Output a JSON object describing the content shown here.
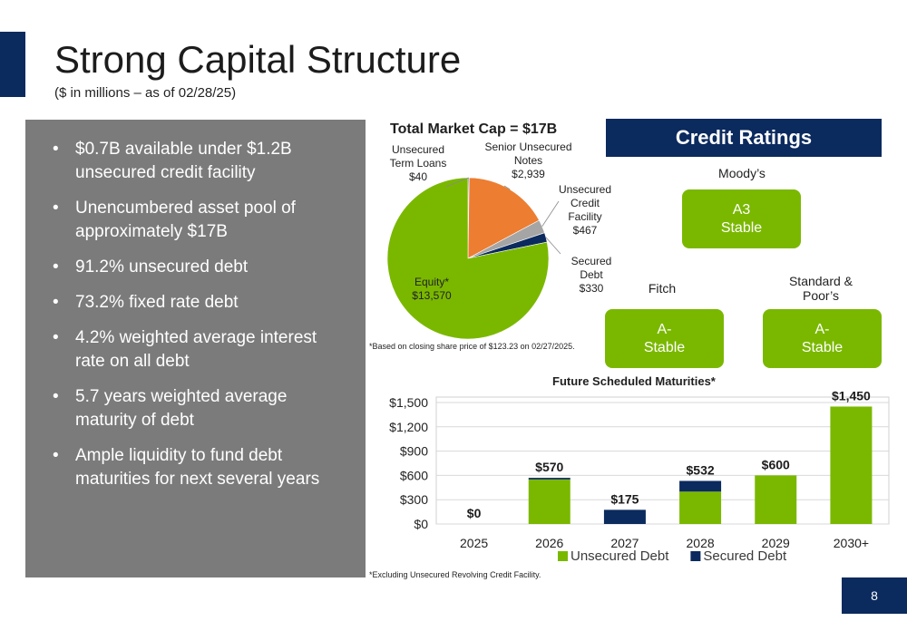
{
  "header": {
    "title": "Strong Capital Structure",
    "subtitle": "($ in millions – as of 02/28/25)"
  },
  "bullets": [
    "$0.7B available under $1.2B unsecured credit facility",
    "Unencumbered asset pool of approximately $17B",
    "91.2% unsecured debt",
    "73.2% fixed rate debt",
    "4.2% weighted average interest rate on all debt",
    "5.7 years weighted average maturity of debt",
    "Ample liquidity to fund debt maturities for next several years"
  ],
  "pie": {
    "title": "Total Market Cap = $17B",
    "note": "*Based on closing share price of $123.23 on 02/27/2025.",
    "labels": {
      "term_loans": [
        "Unsecured",
        "Term Loans",
        "$40"
      ],
      "senior_notes": [
        "Senior Unsecured",
        "Notes",
        "$2,939"
      ],
      "credit_facility": [
        "Unsecured",
        "Credit",
        "Facility",
        "$467"
      ],
      "secured_debt": [
        "Secured",
        "Debt",
        "$330"
      ],
      "equity": [
        "Equity*",
        "$13,570"
      ]
    }
  },
  "ratings": {
    "header": "Credit Ratings",
    "moodys": {
      "agency": "Moody’s",
      "rating": "A3",
      "outlook": "Stable"
    },
    "fitch": {
      "agency": "Fitch",
      "rating": "A-",
      "outlook": "Stable"
    },
    "sp": {
      "agency_line1": "Standard &",
      "agency_line2": "Poor’s",
      "rating": "A-",
      "outlook": "Stable"
    }
  },
  "maturities": {
    "title": "Future Scheduled Maturities*",
    "note": "*Excluding Unsecured Revolving Credit Facility."
  },
  "page_number": "8",
  "chart_data": [
    {
      "type": "pie",
      "title": "Total Market Cap = $17B",
      "slices": [
        {
          "name": "Unsecured Term Loans",
          "value": 40,
          "color": "#4e6f9c"
        },
        {
          "name": "Senior Unsecured Notes",
          "value": 2939,
          "color": "#ed7d31"
        },
        {
          "name": "Unsecured Credit Facility",
          "value": 467,
          "color": "#a5a5a5"
        },
        {
          "name": "Secured Debt",
          "value": 330,
          "color": "#0b2a5e"
        },
        {
          "name": "Equity*",
          "value": 13570,
          "color": "#7ab800"
        }
      ]
    },
    {
      "type": "bar",
      "stacked": true,
      "title": "Future Scheduled Maturities*",
      "categories": [
        "2025",
        "2026",
        "2027",
        "2028",
        "2029",
        "2030+"
      ],
      "series": [
        {
          "name": "Unsecured Debt",
          "color": "#7ab800",
          "values": [
            0,
            550,
            0,
            400,
            600,
            1450
          ]
        },
        {
          "name": "Secured Debt",
          "color": "#0b2a5e",
          "values": [
            0,
            20,
            175,
            132,
            0,
            0
          ]
        }
      ],
      "totals": [
        "$0",
        "$570",
        "$175",
        "$532",
        "$600",
        "$1,450"
      ],
      "y_ticks": [
        "$0",
        "$300",
        "$600",
        "$900",
        "$1,200",
        "$1,500"
      ],
      "ylim": [
        0,
        1500
      ],
      "grid": true,
      "legend": "bottom"
    }
  ]
}
